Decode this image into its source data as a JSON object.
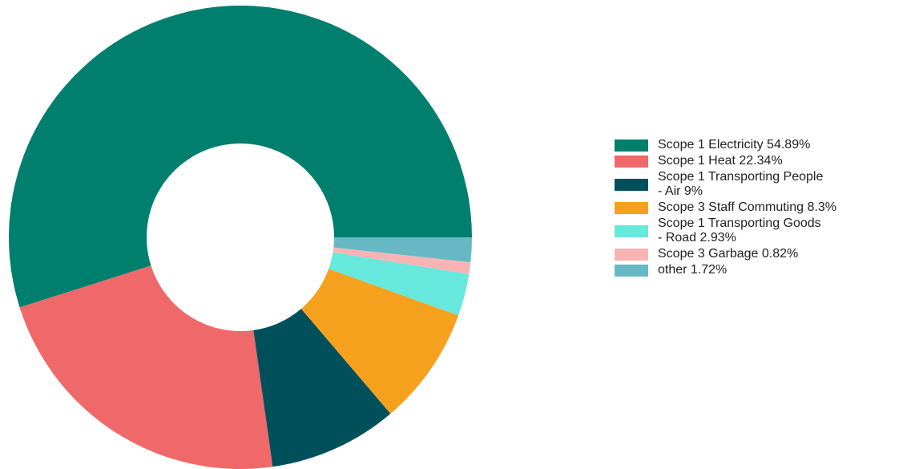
{
  "chart_data": {
    "type": "pie",
    "variant": "donut",
    "title": "",
    "legend_position": "right",
    "series": [
      {
        "name": "Scope 1 Electricity",
        "value": 54.89,
        "label": "Scope 1 Electricity 54.89%",
        "color": "#007f6e"
      },
      {
        "name": "Scope 1 Heat",
        "value": 22.34,
        "label": "Scope 1 Heat 22.34%",
        "color": "#f0696a"
      },
      {
        "name": "Scope 1 Transporting People - Air",
        "value": 9,
        "label": "Scope 1 Transporting People\n- Air 9%",
        "color": "#00505c"
      },
      {
        "name": "Scope 3 Staff Commuting",
        "value": 8.3,
        "label": "Scope 3 Staff Commuting 8.3%",
        "color": "#f6a11e"
      },
      {
        "name": "Scope 1 Transporting Goods - Road",
        "value": 2.93,
        "label": "Scope 1 Transporting Goods\n- Road 2.93%",
        "color": "#66e8dc"
      },
      {
        "name": "Scope 3 Garbage",
        "value": 0.82,
        "label": "Scope 3 Garbage 0.82%",
        "color": "#f8b4b4"
      },
      {
        "name": "other",
        "value": 1.72,
        "label": "other 1.72%",
        "color": "#66b9c4"
      }
    ]
  }
}
